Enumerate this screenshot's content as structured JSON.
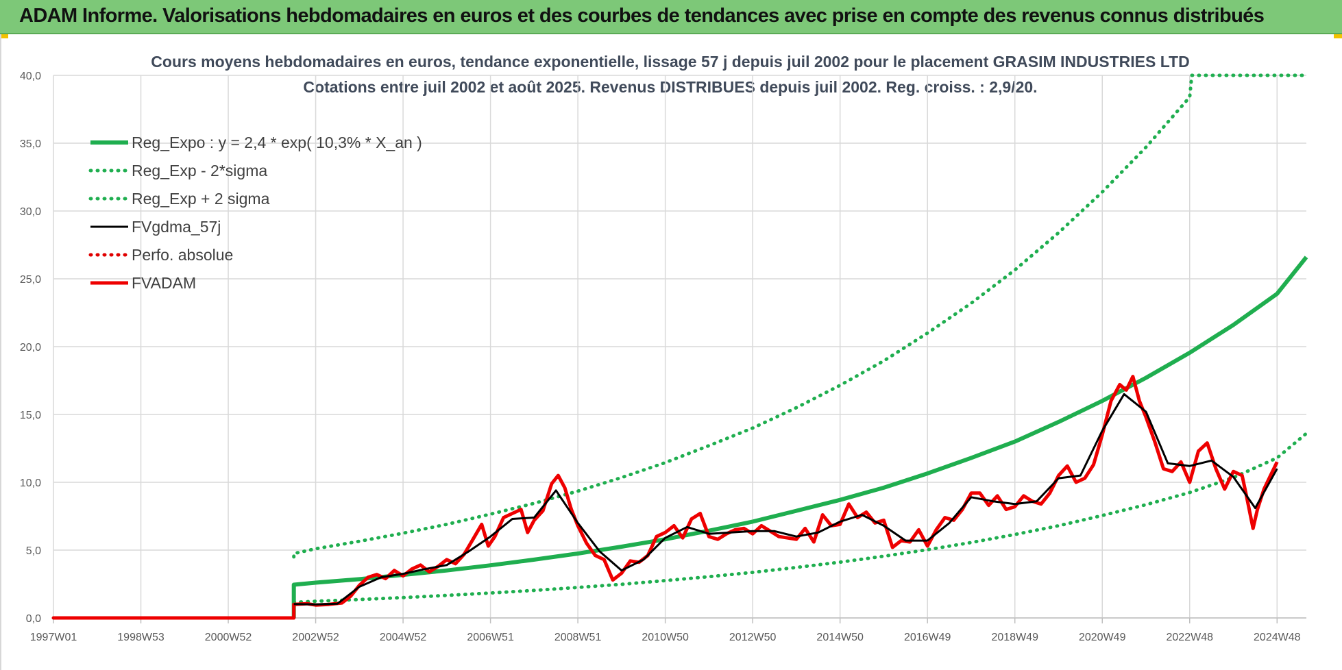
{
  "header": {
    "title": "ADAM Informe. Valorisations hebdomadaires en euros et des courbes de tendances avec prise en compte des revenus connus distribués"
  },
  "colors": {
    "banner": "#7dc878",
    "regression": "#1fae4f",
    "fvgdma": "#000000",
    "fvadam": "#ee0000",
    "perfo": "#e00000"
  },
  "chart_data": {
    "type": "line",
    "title": "Cours moyens hebdomadaires en euros, tendance exponentielle, lissage 57 j depuis juil 2002 pour le placement GRASIM INDUSTRIES LTD",
    "subtitle": "Cotations entre juil 2002 et août 2025. Revenus DISTRIBUES depuis juil 2002. Reg. croiss. : 2,9/20.",
    "xlabel": "",
    "ylabel": "",
    "x_range": [
      1997.0,
      2025.67
    ],
    "ylim": [
      0,
      40
    ],
    "y_ticks": [
      "0,0",
      "5,0",
      "10,0",
      "15,0",
      "20,0",
      "25,0",
      "30,0",
      "35,0",
      "40,0"
    ],
    "x_ticks": [
      {
        "label": "1997W01",
        "x": 1997.0
      },
      {
        "label": "1998W53",
        "x": 1999.0
      },
      {
        "label": "2000W52",
        "x": 2001.0
      },
      {
        "label": "2002W52",
        "x": 2003.0
      },
      {
        "label": "2004W52",
        "x": 2005.0
      },
      {
        "label": "2006W51",
        "x": 2007.0
      },
      {
        "label": "2008W51",
        "x": 2009.0
      },
      {
        "label": "2010W50",
        "x": 2011.0
      },
      {
        "label": "2012W50",
        "x": 2013.0
      },
      {
        "label": "2014W50",
        "x": 2015.0
      },
      {
        "label": "2016W49",
        "x": 2017.0
      },
      {
        "label": "2018W49",
        "x": 2019.0
      },
      {
        "label": "2020W49",
        "x": 2021.0
      },
      {
        "label": "2022W48",
        "x": 2023.0
      },
      {
        "label": "2024W48",
        "x": 2025.0
      }
    ],
    "grid": true,
    "legend_position": "top-left",
    "legend": [
      {
        "label": "Reg_Expo : y = 2,4 * exp( 10,3% *  X_an )",
        "series": "Reg_Expo"
      },
      {
        "label": "Reg_Exp - 2*sigma",
        "series": "Reg_Exp_minus"
      },
      {
        "label": "Reg_Exp + 2 sigma",
        "series": "Reg_Exp_plus"
      },
      {
        "label": "FVgdma_57j",
        "series": "FVgdma_57j"
      },
      {
        "label": "Perfo. absolue",
        "series": "Perfo"
      },
      {
        "label": "FVADAM",
        "series": "FVADAM"
      }
    ],
    "series": [
      {
        "name": "Reg_Expo",
        "color": "#1fae4f",
        "style": "solid",
        "points": [
          [
            2002.5,
            0
          ],
          [
            2002.5,
            2.45
          ],
          [
            2003,
            2.6
          ],
          [
            2004,
            2.86
          ],
          [
            2005,
            3.17
          ],
          [
            2006,
            3.5
          ],
          [
            2007,
            3.88
          ],
          [
            2008,
            4.3
          ],
          [
            2009,
            4.75
          ],
          [
            2010,
            5.25
          ],
          [
            2011,
            5.8
          ],
          [
            2012,
            6.43
          ],
          [
            2013,
            7.1
          ],
          [
            2014,
            7.9
          ],
          [
            2015,
            8.7
          ],
          [
            2016,
            9.6
          ],
          [
            2017,
            10.65
          ],
          [
            2018,
            11.8
          ],
          [
            2019,
            13.0
          ],
          [
            2020,
            14.45
          ],
          [
            2021,
            16.0
          ],
          [
            2022,
            17.7
          ],
          [
            2023,
            19.55
          ],
          [
            2024,
            21.6
          ],
          [
            2025,
            23.9
          ],
          [
            2025.67,
            26.6
          ]
        ]
      },
      {
        "name": "Reg_Exp_minus",
        "color": "#1fae4f",
        "style": "dotted",
        "points": [
          [
            2002.5,
            1.15
          ],
          [
            2003,
            1.23
          ],
          [
            2004,
            1.36
          ],
          [
            2005,
            1.5
          ],
          [
            2006,
            1.66
          ],
          [
            2007,
            1.84
          ],
          [
            2008,
            2.03
          ],
          [
            2009,
            2.25
          ],
          [
            2010,
            2.48
          ],
          [
            2011,
            2.75
          ],
          [
            2012,
            3.04
          ],
          [
            2013,
            3.36
          ],
          [
            2014,
            3.72
          ],
          [
            2015,
            4.11
          ],
          [
            2016,
            4.55
          ],
          [
            2017,
            5.03
          ],
          [
            2018,
            5.56
          ],
          [
            2019,
            6.15
          ],
          [
            2020,
            6.8
          ],
          [
            2021,
            7.55
          ],
          [
            2022,
            8.35
          ],
          [
            2023,
            9.25
          ],
          [
            2024,
            10.35
          ],
          [
            2025,
            11.8
          ],
          [
            2025.67,
            13.6
          ]
        ]
      },
      {
        "name": "Reg_Exp_plus",
        "color": "#1fae4f",
        "style": "dotted",
        "points": [
          [
            2002.5,
            4.5
          ],
          [
            2002.5,
            4.75
          ],
          [
            2003,
            5.1
          ],
          [
            2004,
            5.65
          ],
          [
            2005,
            6.25
          ],
          [
            2006,
            6.9
          ],
          [
            2007,
            7.65
          ],
          [
            2008,
            8.45
          ],
          [
            2009,
            9.35
          ],
          [
            2010,
            10.35
          ],
          [
            2011,
            11.45
          ],
          [
            2012,
            12.7
          ],
          [
            2013,
            14.0
          ],
          [
            2014,
            15.5
          ],
          [
            2015,
            17.15
          ],
          [
            2016,
            18.95
          ],
          [
            2017,
            21.0
          ],
          [
            2018,
            23.2
          ],
          [
            2019,
            25.65
          ],
          [
            2020,
            28.4
          ],
          [
            2021,
            31.4
          ],
          [
            2022,
            34.7
          ],
          [
            2023,
            38.4
          ],
          [
            2023.05,
            40.0
          ],
          [
            2025.67,
            40.0
          ]
        ]
      },
      {
        "name": "Perfo",
        "color": "#e00000",
        "style": "dotted",
        "points": [
          [
            1997.0,
            0
          ],
          [
            2002.5,
            0
          ]
        ]
      },
      {
        "name": "FVADAM",
        "color": "#ee0000",
        "style": "thick",
        "points": [
          [
            1997.0,
            0
          ],
          [
            2002.5,
            0
          ],
          [
            2002.5,
            1.0
          ],
          [
            2002.8,
            1.05
          ],
          [
            2003,
            0.95
          ],
          [
            2003.3,
            1.0
          ],
          [
            2003.6,
            1.1
          ],
          [
            2003.8,
            1.6
          ],
          [
            2004.0,
            2.4
          ],
          [
            2004.2,
            3.0
          ],
          [
            2004.4,
            3.2
          ],
          [
            2004.6,
            2.9
          ],
          [
            2004.8,
            3.5
          ],
          [
            2005.0,
            3.1
          ],
          [
            2005.2,
            3.6
          ],
          [
            2005.4,
            3.9
          ],
          [
            2005.6,
            3.4
          ],
          [
            2005.8,
            3.8
          ],
          [
            2006.0,
            4.3
          ],
          [
            2006.2,
            4.0
          ],
          [
            2006.4,
            4.7
          ],
          [
            2006.6,
            5.8
          ],
          [
            2006.8,
            6.9
          ],
          [
            2006.95,
            5.3
          ],
          [
            2007.1,
            6.0
          ],
          [
            2007.3,
            7.4
          ],
          [
            2007.5,
            7.7
          ],
          [
            2007.7,
            8.0
          ],
          [
            2007.85,
            6.3
          ],
          [
            2008.0,
            7.2
          ],
          [
            2008.2,
            7.9
          ],
          [
            2008.4,
            9.9
          ],
          [
            2008.55,
            10.5
          ],
          [
            2008.7,
            9.6
          ],
          [
            2008.85,
            8.0
          ],
          [
            2009.0,
            6.8
          ],
          [
            2009.2,
            5.5
          ],
          [
            2009.4,
            4.6
          ],
          [
            2009.6,
            4.3
          ],
          [
            2009.8,
            2.8
          ],
          [
            2010.0,
            3.3
          ],
          [
            2010.2,
            4.2
          ],
          [
            2010.4,
            4.1
          ],
          [
            2010.6,
            4.6
          ],
          [
            2010.8,
            6.0
          ],
          [
            2011.0,
            6.3
          ],
          [
            2011.2,
            6.8
          ],
          [
            2011.4,
            5.9
          ],
          [
            2011.6,
            7.3
          ],
          [
            2011.8,
            7.7
          ],
          [
            2012.0,
            6.0
          ],
          [
            2012.2,
            5.8
          ],
          [
            2012.4,
            6.2
          ],
          [
            2012.6,
            6.5
          ],
          [
            2012.8,
            6.6
          ],
          [
            2013.0,
            6.2
          ],
          [
            2013.2,
            6.8
          ],
          [
            2013.4,
            6.4
          ],
          [
            2013.6,
            6.0
          ],
          [
            2013.8,
            5.9
          ],
          [
            2014.0,
            5.8
          ],
          [
            2014.2,
            6.6
          ],
          [
            2014.4,
            5.6
          ],
          [
            2014.6,
            7.6
          ],
          [
            2014.8,
            6.8
          ],
          [
            2015.0,
            6.9
          ],
          [
            2015.2,
            8.4
          ],
          [
            2015.4,
            7.4
          ],
          [
            2015.6,
            7.8
          ],
          [
            2015.8,
            7.0
          ],
          [
            2016.0,
            7.2
          ],
          [
            2016.2,
            5.2
          ],
          [
            2016.4,
            5.7
          ],
          [
            2016.6,
            5.6
          ],
          [
            2016.8,
            6.5
          ],
          [
            2017.0,
            5.3
          ],
          [
            2017.2,
            6.5
          ],
          [
            2017.4,
            7.4
          ],
          [
            2017.6,
            7.2
          ],
          [
            2017.8,
            8.0
          ],
          [
            2018.0,
            9.2
          ],
          [
            2018.2,
            9.2
          ],
          [
            2018.4,
            8.3
          ],
          [
            2018.6,
            9.0
          ],
          [
            2018.8,
            8.0
          ],
          [
            2019.0,
            8.2
          ],
          [
            2019.2,
            9.0
          ],
          [
            2019.4,
            8.6
          ],
          [
            2019.6,
            8.4
          ],
          [
            2019.8,
            9.2
          ],
          [
            2020.0,
            10.5
          ],
          [
            2020.2,
            11.2
          ],
          [
            2020.4,
            10.0
          ],
          [
            2020.6,
            10.3
          ],
          [
            2020.8,
            11.3
          ],
          [
            2021.0,
            13.5
          ],
          [
            2021.2,
            16.0
          ],
          [
            2021.4,
            17.2
          ],
          [
            2021.55,
            16.8
          ],
          [
            2021.7,
            17.8
          ],
          [
            2021.85,
            16.0
          ],
          [
            2022.0,
            14.8
          ],
          [
            2022.2,
            13.0
          ],
          [
            2022.4,
            11.0
          ],
          [
            2022.6,
            10.8
          ],
          [
            2022.8,
            11.5
          ],
          [
            2023.0,
            10.0
          ],
          [
            2023.2,
            12.3
          ],
          [
            2023.4,
            12.9
          ],
          [
            2023.6,
            11.0
          ],
          [
            2023.8,
            9.5
          ],
          [
            2024.0,
            10.8
          ],
          [
            2024.2,
            10.5
          ],
          [
            2024.3,
            9.0
          ],
          [
            2024.45,
            6.6
          ],
          [
            2024.55,
            8.0
          ],
          [
            2024.7,
            9.5
          ],
          [
            2024.85,
            10.5
          ],
          [
            2025.0,
            11.5
          ]
        ]
      },
      {
        "name": "FVgdma_57j",
        "color": "#000000",
        "style": "solid",
        "points": [
          [
            2002.5,
            1.02
          ],
          [
            2003,
            1.0
          ],
          [
            2003.5,
            1.05
          ],
          [
            2004,
            2.3
          ],
          [
            2004.5,
            3.0
          ],
          [
            2005,
            3.25
          ],
          [
            2005.5,
            3.6
          ],
          [
            2006,
            3.9
          ],
          [
            2006.5,
            4.9
          ],
          [
            2007,
            6.0
          ],
          [
            2007.5,
            7.3
          ],
          [
            2008,
            7.4
          ],
          [
            2008.5,
            9.4
          ],
          [
            2009,
            7.0
          ],
          [
            2009.5,
            4.9
          ],
          [
            2010,
            3.5
          ],
          [
            2010.5,
            4.3
          ],
          [
            2011,
            5.9
          ],
          [
            2011.5,
            6.7
          ],
          [
            2012,
            6.2
          ],
          [
            2012.5,
            6.3
          ],
          [
            2013,
            6.4
          ],
          [
            2013.5,
            6.4
          ],
          [
            2014,
            6.0
          ],
          [
            2014.5,
            6.3
          ],
          [
            2015,
            7.1
          ],
          [
            2015.5,
            7.6
          ],
          [
            2016,
            6.8
          ],
          [
            2016.5,
            5.7
          ],
          [
            2017,
            5.7
          ],
          [
            2017.5,
            7.0
          ],
          [
            2018,
            8.9
          ],
          [
            2018.5,
            8.6
          ],
          [
            2019,
            8.4
          ],
          [
            2019.5,
            8.6
          ],
          [
            2020,
            10.3
          ],
          [
            2020.5,
            10.5
          ],
          [
            2021,
            13.8
          ],
          [
            2021.5,
            16.5
          ],
          [
            2022,
            15.2
          ],
          [
            2022.5,
            11.4
          ],
          [
            2023,
            11.2
          ],
          [
            2023.5,
            11.6
          ],
          [
            2024,
            10.4
          ],
          [
            2024.5,
            8.1
          ],
          [
            2025,
            11.0
          ]
        ]
      }
    ]
  }
}
